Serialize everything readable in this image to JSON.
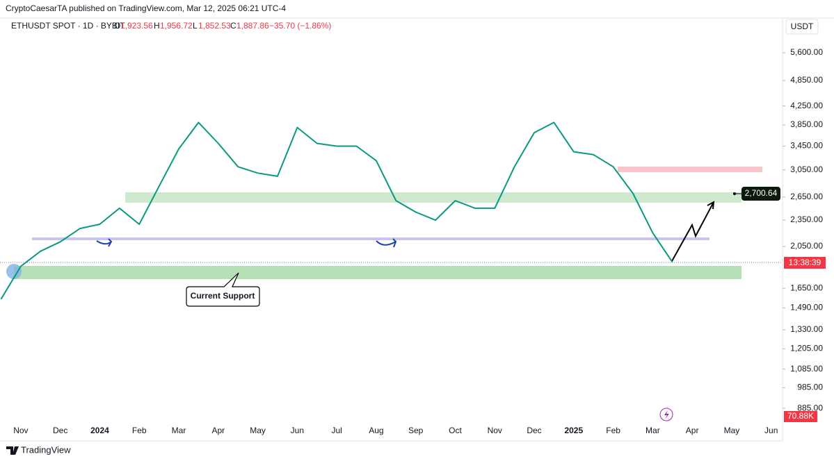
{
  "header": {
    "published": "CryptoCaesarTA published on TradingView.com, Mar 12, 2025 06:21 UTC-4",
    "symbol": "ETHUSDT SPOT · 1D · BYBIT",
    "open_label": "O",
    "open": "1,923.56",
    "high_label": "H",
    "high": "1,956.72",
    "low_label": "L",
    "low": "1,852.53",
    "close_label": "C",
    "close": "1,887.86",
    "change": "−35.70 (−1.86%)",
    "currency": "USDT",
    "brand": "TradingView"
  },
  "chart_data": {
    "type": "line",
    "log_scale": true,
    "color": "#089981",
    "categories": [
      null,
      "Nov",
      null,
      "Dec",
      null,
      "2024",
      null,
      "Feb",
      null,
      "Mar",
      null,
      "Apr",
      null,
      "May",
      null,
      "Jun",
      null,
      "Jul",
      null,
      "Aug",
      null,
      "Sep",
      null,
      "Oct",
      null,
      "Nov",
      null,
      "Dec",
      null,
      "2025",
      null,
      "Feb",
      null,
      "Mar",
      null,
      "Apr",
      null,
      "May",
      null,
      "Jun"
    ],
    "values": [
      1560,
      1850,
      2000,
      2100,
      2250,
      2300,
      2500,
      2300,
      2800,
      3400,
      3900,
      3500,
      3100,
      3000,
      2950,
      3800,
      3500,
      3450,
      3450,
      3200,
      2600,
      2450,
      2350,
      2600,
      2500,
      2500,
      3100,
      3700,
      3900,
      3350,
      3300,
      3100,
      2700,
      2200,
      1888,
      null,
      null,
      null,
      null,
      null
    ],
    "ylim": [
      818,
      6150
    ],
    "yticks": [
      {
        "value": 5600,
        "label": "5,600.00"
      },
      {
        "value": 4850,
        "label": "4,850.00"
      },
      {
        "value": 4250,
        "label": "4,250.00"
      },
      {
        "value": 3850,
        "label": "3,850.00"
      },
      {
        "value": 3450,
        "label": "3,450.00"
      },
      {
        "value": 3050,
        "label": "3,050.00"
      },
      {
        "value": 2650,
        "label": "2,650.00"
      },
      {
        "value": 2350,
        "label": "2,350.00"
      },
      {
        "value": 2050,
        "label": "2,050.00"
      },
      {
        "value": 1650,
        "label": "1,650.00"
      },
      {
        "value": 1490,
        "label": "1,490.00"
      },
      {
        "value": 1330,
        "label": "1,330.00"
      },
      {
        "value": 1205,
        "label": "1,205.00"
      },
      {
        "value": 1085,
        "label": "1,085.00"
      },
      {
        "value": 985,
        "label": "985.00"
      },
      {
        "value": 885,
        "label": "885.00"
      }
    ],
    "grid": false,
    "target_label": "2,700.64",
    "callout": "Current Support",
    "countdown": "13:38:39",
    "volume_label": "70.88K"
  }
}
